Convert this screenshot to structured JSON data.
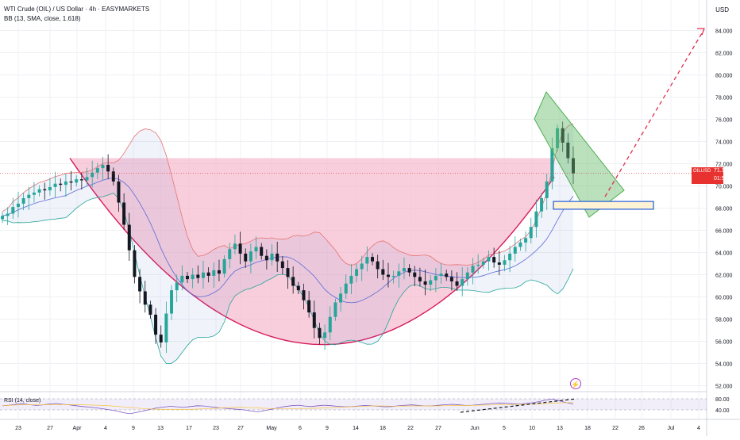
{
  "header": {
    "symbol_line": "WTI Crude (OIL) / US Dollar · 4h · EASYMARKETS",
    "indicator_line": "BB (13, SMA, close, 1.618)",
    "currency": "USD"
  },
  "price_tag": {
    "symbol": "OILUSD",
    "price": "71.130",
    "countdown": "01:57:00"
  },
  "rsi_label": "RSI (14, close)",
  "lightning_icon": "lightning-icon",
  "colors": {
    "up": "#26a69a",
    "down": "#131722",
    "pattern_fill": "#f4a6c0",
    "pattern_line": "#d61a5b",
    "bb_upper": "#e57373",
    "bb_basis": "#5b6bd6",
    "bb_lower": "#26a69a",
    "channel": "#4caf50",
    "projection": "#e02f4f",
    "box": "#1e5ad6",
    "price_tag": "#e8322f"
  },
  "chart_data": {
    "type": "candlestick",
    "timeframe": "4h",
    "y_axis": {
      "range": [
        52,
        85
      ],
      "ticks": [
        "84.000",
        "82.000",
        "80.000",
        "78.000",
        "76.000",
        "74.000",
        "72.000",
        "70.000",
        "68.000",
        "66.000",
        "64.000",
        "62.000",
        "60.000",
        "58.000",
        "56.000",
        "54.000",
        "52.000"
      ]
    },
    "x_axis": {
      "ticks": [
        "23",
        "27",
        "Apr",
        "4",
        "9",
        "13",
        "17",
        "23",
        "27",
        "May",
        "6",
        "9",
        "14",
        "18",
        "22",
        "27",
        "Jun",
        "5",
        "10",
        "13",
        "18",
        "22",
        "26",
        "Jul",
        "4"
      ]
    },
    "last_price": 71.13,
    "closes": [
      67.3,
      67.5,
      68.1,
      68.4,
      68.9,
      69.2,
      69.4,
      69.7,
      69.6,
      69.9,
      70.2,
      70.1,
      70.4,
      70.3,
      70.6,
      70.5,
      70.8,
      71.2,
      71.6,
      71.9,
      71.3,
      70.4,
      68.5,
      66.5,
      64.2,
      61.8,
      60.5,
      59.3,
      58.4,
      56.6,
      55.9,
      58.5,
      60.6,
      61.3,
      61.9,
      61.6,
      62.0,
      61.7,
      62.2,
      61.9,
      62.4,
      62.1,
      63.4,
      64.3,
      64.8,
      63.9,
      63.2,
      64.1,
      64.5,
      63.7,
      63.3,
      63.9,
      63.2,
      62.6,
      61.8,
      61.0,
      60.6,
      59.7,
      58.6,
      57.2,
      56.3,
      56.8,
      58.2,
      59.5,
      60.3,
      61.2,
      61.9,
      62.5,
      63.0,
      63.6,
      63.2,
      62.5,
      62.0,
      61.8,
      61.9,
      62.3,
      62.6,
      62.2,
      61.8,
      61.4,
      61.1,
      61.5,
      61.9,
      62.1,
      61.8,
      61.4,
      61.0,
      61.6,
      62.2,
      62.8,
      62.9,
      63.2,
      63.6,
      63.1,
      62.9,
      63.3,
      63.9,
      64.5,
      64.9,
      65.3,
      66.3,
      67.7,
      68.9,
      70.4,
      73.4,
      75.2,
      73.9,
      72.5,
      71.13
    ],
    "bollinger_bands": {
      "period": 13,
      "type": "SMA",
      "source": "close",
      "multiplier": 1.618
    },
    "rsi": {
      "period": 14,
      "source": "close",
      "ticks": [
        "80.00",
        "40.00"
      ],
      "values": [
        55,
        57,
        60,
        62,
        59,
        56,
        58,
        61,
        63,
        60,
        58,
        55,
        52,
        50,
        47,
        44,
        40,
        36,
        30,
        26,
        31,
        36,
        42,
        47,
        50,
        53,
        51,
        49,
        52,
        55,
        54,
        51,
        48,
        46,
        44,
        42,
        40,
        36,
        33,
        37,
        42,
        47,
        52,
        55,
        57,
        54,
        52,
        55,
        57,
        55,
        53,
        51,
        52,
        54,
        56,
        55,
        53,
        51,
        52,
        55,
        57,
        58,
        56,
        54,
        55,
        57,
        59,
        60,
        58,
        56,
        57,
        59,
        61,
        63,
        65,
        64,
        62,
        61,
        63,
        66,
        70,
        76,
        79,
        72,
        66,
        61
      ]
    },
    "drawings": {
      "cup_pattern": {
        "rim_price": 72.5,
        "bottom_price": 55.7
      },
      "bull_flag_channel": {
        "high": 78.3,
        "low": 67.3
      },
      "target_box": {
        "top": 68.6,
        "bottom": 67.9
      },
      "projection_target": 84.0,
      "rsi_trendline": "rising"
    }
  }
}
